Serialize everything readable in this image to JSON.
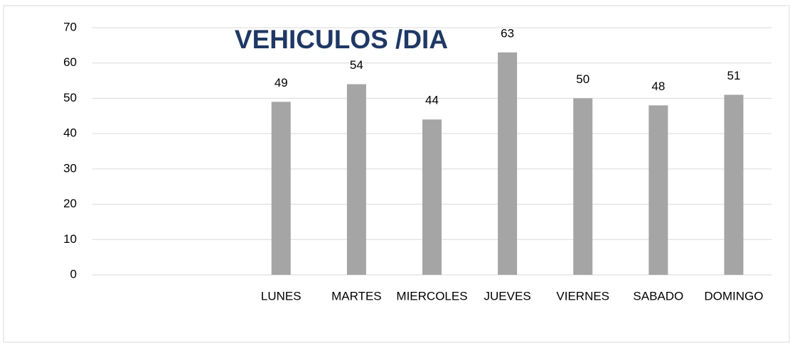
{
  "chart_data": {
    "type": "bar",
    "title": "VEHICULOS /DIA",
    "categories": [
      null,
      null,
      "LUNES",
      "MARTES",
      "MIERCOLES",
      "JUEVES",
      "VIERNES",
      "SABADO",
      "DOMINGO"
    ],
    "values": [
      null,
      null,
      49,
      54,
      44,
      63,
      50,
      48,
      51
    ],
    "color": "#a5a5a5",
    "ylim": [
      0,
      70
    ],
    "yticks": [
      0,
      10,
      20,
      30,
      40,
      50,
      60,
      70
    ],
    "grid": true
  }
}
